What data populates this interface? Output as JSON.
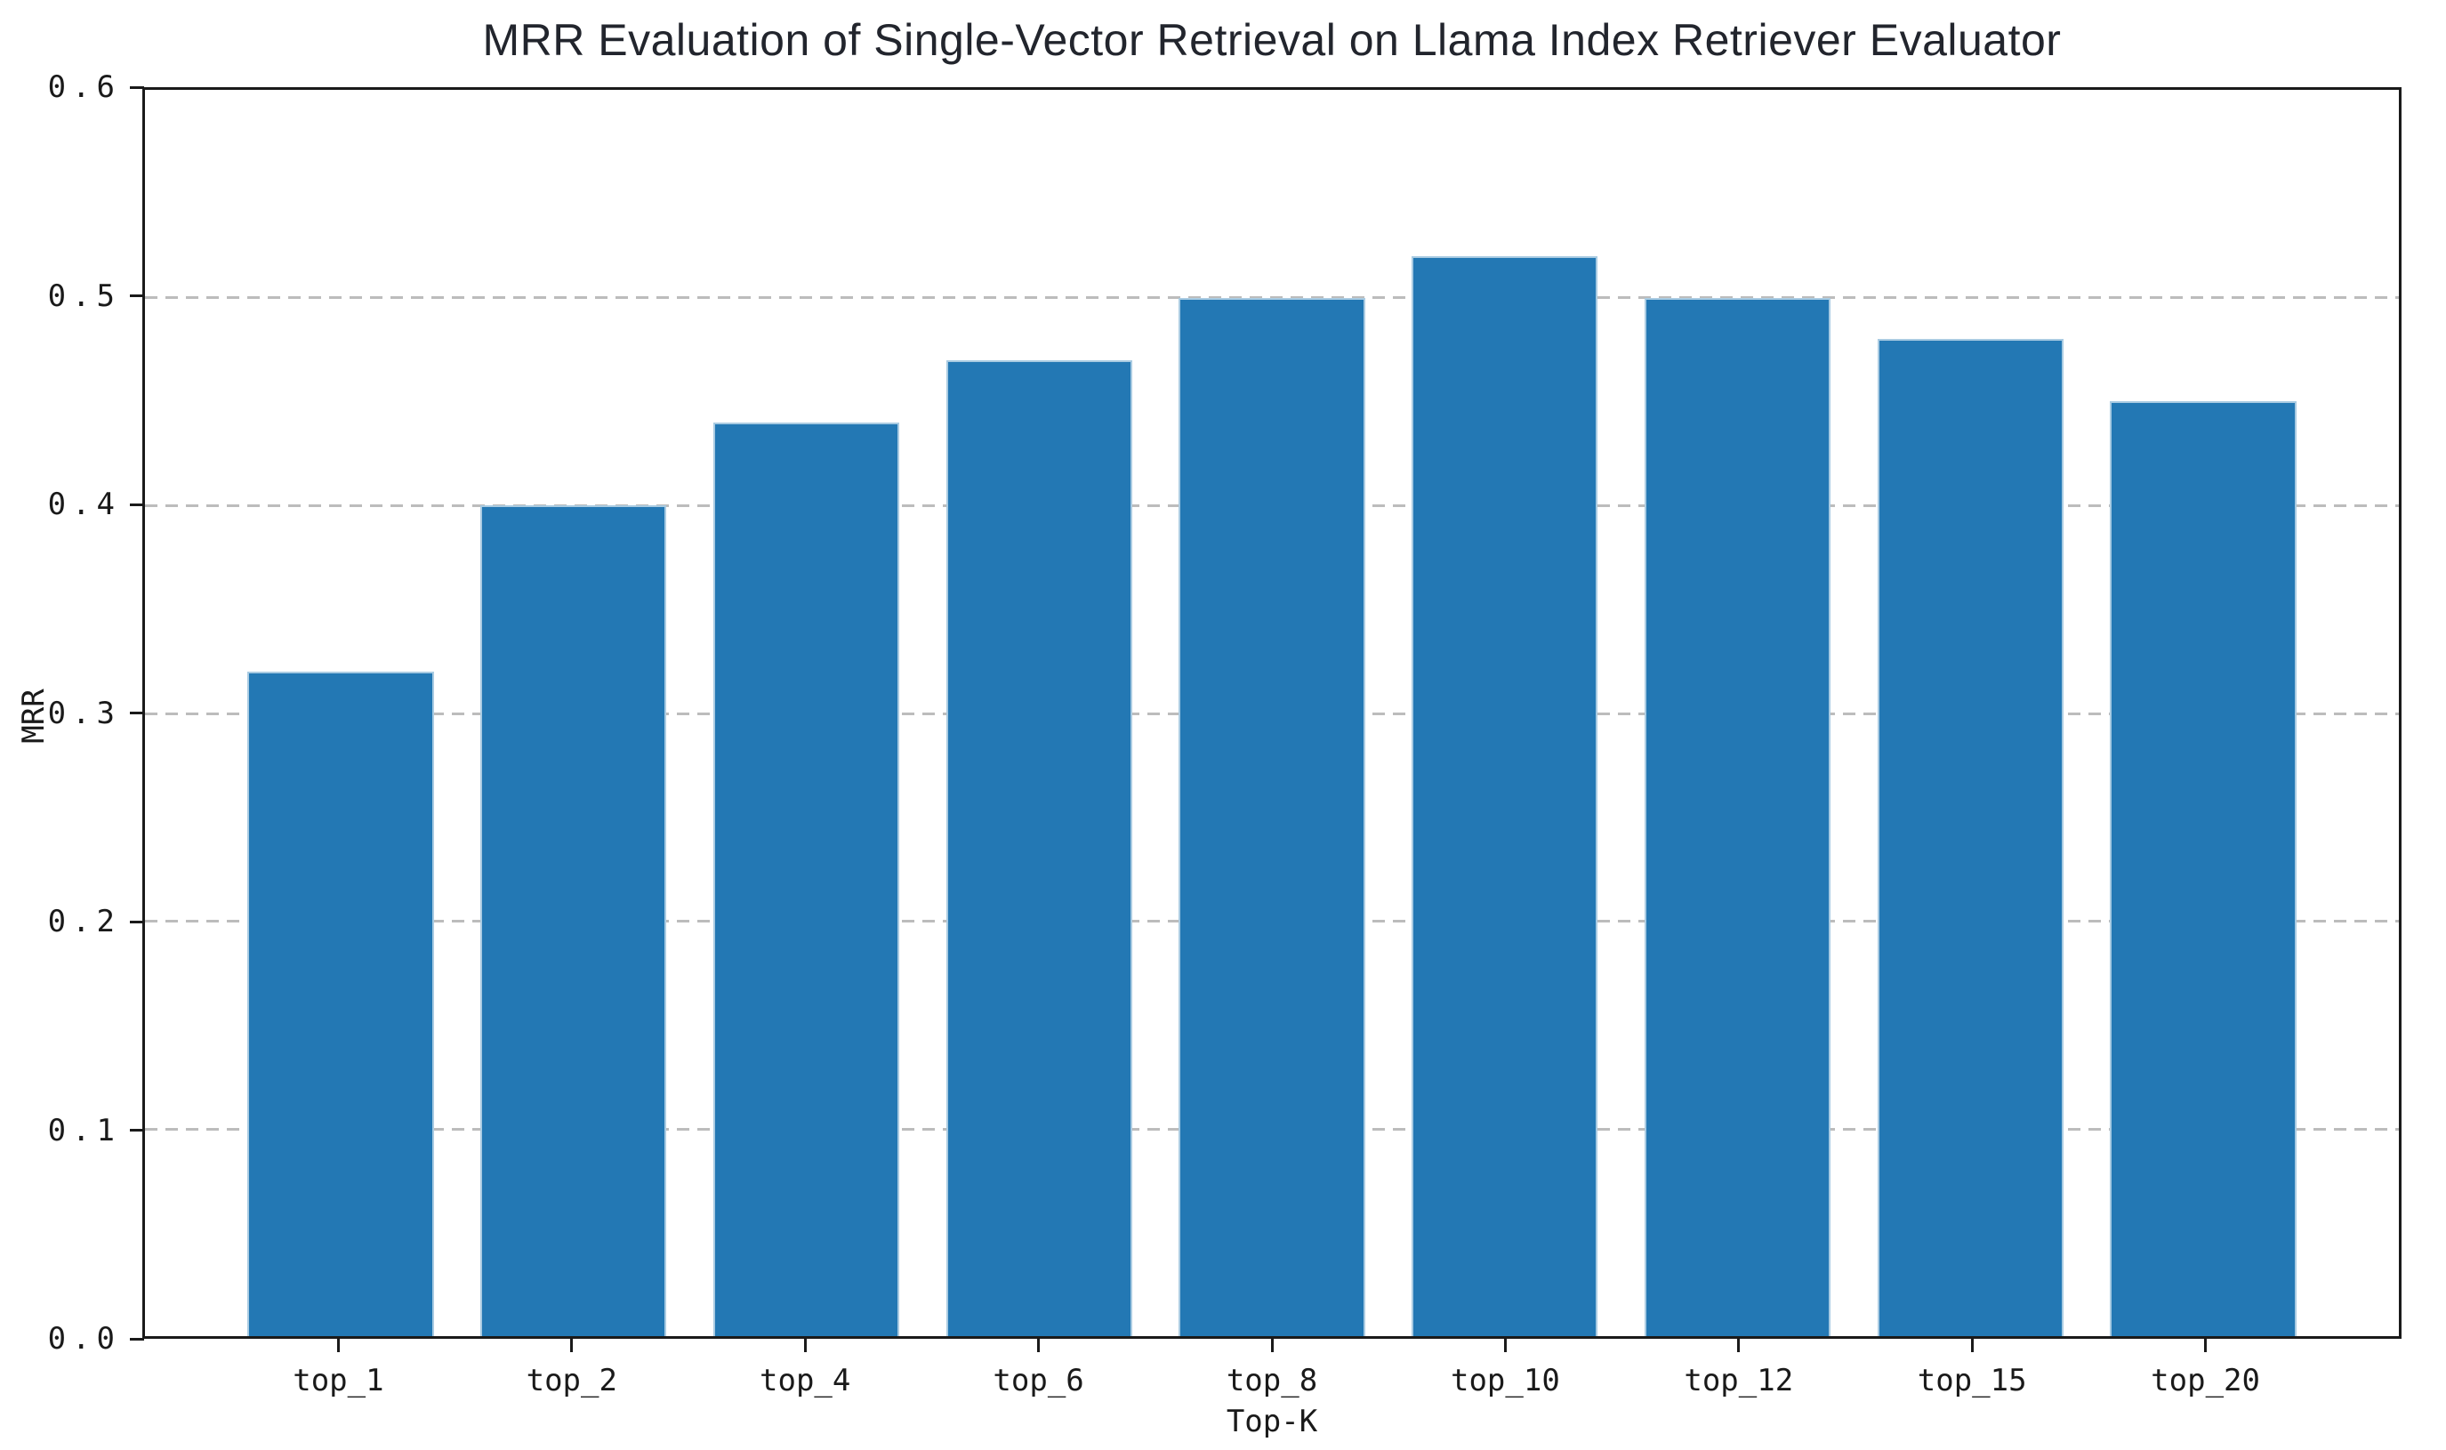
{
  "title": "MRR Evaluation of Single-Vector Retrieval on Llama Index Retriever Evaluator",
  "chart_data": {
    "type": "bar",
    "title": "MRR Evaluation of Single-Vector Retrieval on Llama Index Retriever Evaluator",
    "categories": [
      "top_1",
      "top_2",
      "top_4",
      "top_6",
      "top_8",
      "top_10",
      "top_12",
      "top_15",
      "top_20"
    ],
    "values": [
      0.32,
      0.4,
      0.44,
      0.47,
      0.5,
      0.52,
      0.5,
      0.48,
      0.45
    ],
    "xlabel": "Top-K",
    "ylabel": "MRR",
    "ylim": [
      0.0,
      0.6
    ],
    "yticks": [
      0.0,
      0.1,
      0.2,
      0.3,
      0.4,
      0.5,
      0.6
    ],
    "ytick_labels": [
      "0.0",
      "0.1",
      "0.2",
      "0.3",
      "0.4",
      "0.5",
      "0.6"
    ],
    "grid": "horizontal dashed gridlines at each y tick",
    "legend": "none",
    "colors": {
      "bar_fill": "#2378b4",
      "bar_edge": "#a9cbe2",
      "grid_line": "#bcbcbc",
      "axis_and_text": "#1a1a1a",
      "title_text": "#22252d",
      "background": "#ffffff"
    }
  }
}
